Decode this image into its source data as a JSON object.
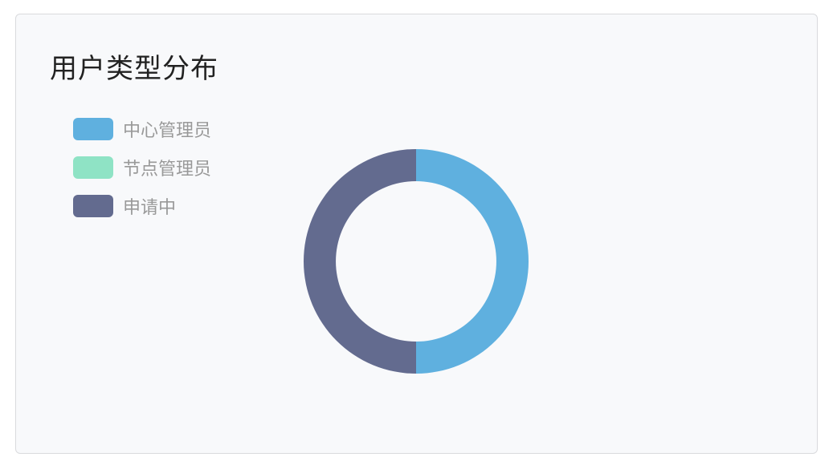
{
  "chart_data": {
    "type": "pie",
    "subtype": "donut",
    "title": "用户类型分布",
    "legend_position": "top-left",
    "categories": [
      "中心管理员",
      "节点管理员",
      "申请中"
    ],
    "values": [
      1,
      0,
      1
    ],
    "colors": [
      "#5fb0df",
      "#8fe3c5",
      "#636b8f"
    ]
  }
}
